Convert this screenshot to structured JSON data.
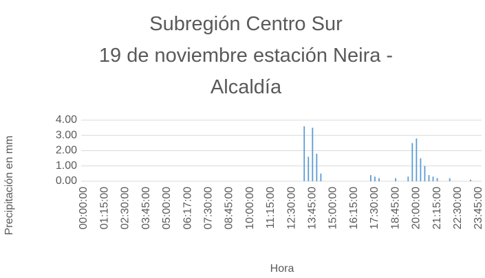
{
  "chart_data": {
    "type": "bar",
    "title": "Subregión Centro Sur\n19 de noviembre estación Neira -\nAlcaldía",
    "y_label": "Precipitación en mm",
    "x_label": "Hora",
    "color": "#5b9bd5",
    "grid": true,
    "ylim": [
      0,
      4
    ],
    "yticks": [
      {
        "value": 0,
        "label": "0.00"
      },
      {
        "value": 1,
        "label": "1.00"
      },
      {
        "value": 2,
        "label": "2.00"
      },
      {
        "value": 3,
        "label": "3.00"
      },
      {
        "value": 4,
        "label": "4.00"
      }
    ],
    "categories": [
      "00:00:00",
      null,
      null,
      null,
      null,
      "01:15:00",
      null,
      null,
      null,
      null,
      "02:30:00",
      null,
      null,
      null,
      null,
      "03:45:00",
      null,
      null,
      null,
      null,
      "05:00:00",
      null,
      null,
      null,
      null,
      "06:17:00",
      null,
      null,
      null,
      null,
      "07:30:00",
      null,
      null,
      null,
      null,
      "08:45:00",
      null,
      null,
      null,
      null,
      "10:00:00",
      null,
      null,
      null,
      null,
      "11:15:00",
      null,
      null,
      null,
      null,
      "12:30:00",
      null,
      null,
      null,
      null,
      "13:45:00",
      null,
      null,
      null,
      null,
      "15:00:00",
      null,
      null,
      null,
      null,
      "16:15:00",
      null,
      null,
      null,
      null,
      "17:30:00",
      null,
      null,
      null,
      null,
      "18:45:00",
      null,
      null,
      null,
      null,
      "20:00:00",
      null,
      null,
      null,
      null,
      "21:15:00",
      null,
      null,
      null,
      null,
      "22:30:00",
      null,
      null,
      null,
      null,
      "23:45:00"
    ],
    "values": [
      0,
      0,
      0,
      0,
      0,
      0,
      0,
      0,
      0,
      0,
      0,
      0,
      0,
      0,
      0,
      0,
      0,
      0,
      0,
      0,
      0,
      0,
      0,
      0,
      0,
      0,
      0,
      0,
      0,
      0,
      0,
      0,
      0,
      0,
      0,
      0,
      0,
      0,
      0,
      0,
      0,
      0,
      0,
      0,
      0,
      0,
      0,
      0,
      0,
      0,
      0,
      0,
      0,
      3.6,
      1.6,
      3.5,
      1.8,
      0.5,
      0,
      0,
      0,
      0,
      0,
      0,
      0,
      0,
      0,
      0,
      0,
      0.4,
      0.3,
      0.2,
      0,
      0,
      0,
      0.2,
      0,
      0,
      0.3,
      2.5,
      2.8,
      1.5,
      1.0,
      0.4,
      0.3,
      0.2,
      0,
      0,
      0.2,
      0,
      0,
      0,
      0,
      0.1,
      0,
      0
    ]
  }
}
